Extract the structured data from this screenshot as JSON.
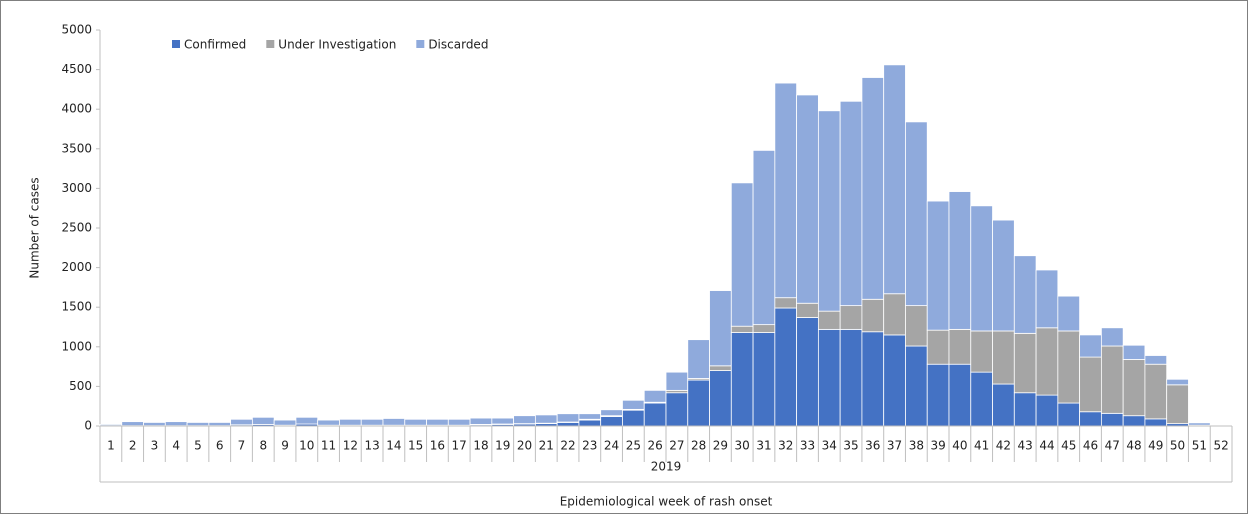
{
  "chart_data": {
    "type": "stacked_bar",
    "y_label": "Number of cases",
    "x_label": "Epidemiological week of rash onset",
    "group_label": "2019",
    "categories": [
      "1",
      "2",
      "3",
      "4",
      "5",
      "6",
      "7",
      "8",
      "9",
      "10",
      "11",
      "12",
      "13",
      "14",
      "15",
      "16",
      "17",
      "18",
      "19",
      "20",
      "21",
      "22",
      "23",
      "24",
      "25",
      "26",
      "27",
      "28",
      "29",
      "30",
      "31",
      "32",
      "33",
      "34",
      "35",
      "36",
      "37",
      "38",
      "39",
      "40",
      "41",
      "42",
      "43",
      "44",
      "45",
      "46",
      "47",
      "48",
      "49",
      "50",
      "51",
      "52"
    ],
    "series": [
      {
        "name": "Confirmed",
        "color": "#4472c4",
        "values": [
          5,
          5,
          5,
          5,
          5,
          5,
          15,
          20,
          10,
          25,
          10,
          10,
          10,
          10,
          10,
          10,
          10,
          15,
          20,
          25,
          30,
          45,
          75,
          120,
          200,
          290,
          420,
          580,
          700,
          1180,
          1180,
          1490,
          1370,
          1220,
          1220,
          1190,
          1150,
          1010,
          780,
          780,
          680,
          530,
          420,
          390,
          290,
          180,
          160,
          130,
          90,
          30,
          5,
          0
        ]
      },
      {
        "name": "Under Investigation",
        "color": "#a5a5a5",
        "values": [
          0,
          0,
          0,
          0,
          0,
          0,
          0,
          0,
          0,
          0,
          0,
          0,
          0,
          0,
          0,
          0,
          0,
          5,
          5,
          5,
          5,
          5,
          10,
          10,
          10,
          10,
          30,
          20,
          60,
          80,
          100,
          130,
          180,
          230,
          300,
          410,
          520,
          510,
          430,
          440,
          520,
          670,
          750,
          850,
          910,
          690,
          850,
          710,
          690,
          490,
          5,
          0
        ]
      },
      {
        "name": "Discarded",
        "color": "#8faadc",
        "values": [
          15,
          50,
          40,
          50,
          40,
          40,
          70,
          90,
          65,
          85,
          65,
          75,
          75,
          85,
          75,
          75,
          75,
          80,
          75,
          100,
          105,
          105,
          70,
          75,
          115,
          150,
          230,
          490,
          950,
          1810,
          2200,
          2710,
          2630,
          2530,
          2580,
          2800,
          2890,
          2320,
          1630,
          1740,
          1580,
          1400,
          980,
          730,
          440,
          280,
          230,
          180,
          110,
          70,
          30,
          0
        ]
      }
    ],
    "ylim": [
      0,
      5000
    ],
    "yticks": [
      0,
      500,
      1000,
      1500,
      2000,
      2500,
      3000,
      3500,
      4000,
      4500,
      5000
    ],
    "legend": "top-left"
  }
}
